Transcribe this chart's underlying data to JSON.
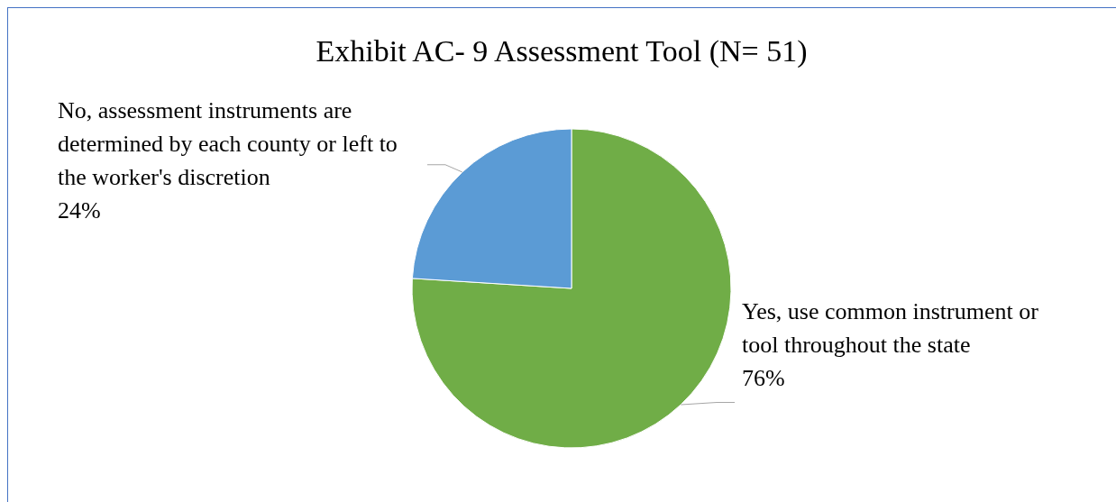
{
  "chart_data": {
    "type": "pie",
    "title": "Exhibit AC- 9 Assessment Tool (N= 51)",
    "categories": [
      "Yes, use common instrument or tool throughout the state",
      "No, assessment instruments are determined by each county or left to the worker's discretion"
    ],
    "values": [
      76,
      24
    ],
    "value_labels": [
      "76%",
      "24%"
    ],
    "colors": [
      "#70ad47",
      "#5b9bd5"
    ]
  }
}
